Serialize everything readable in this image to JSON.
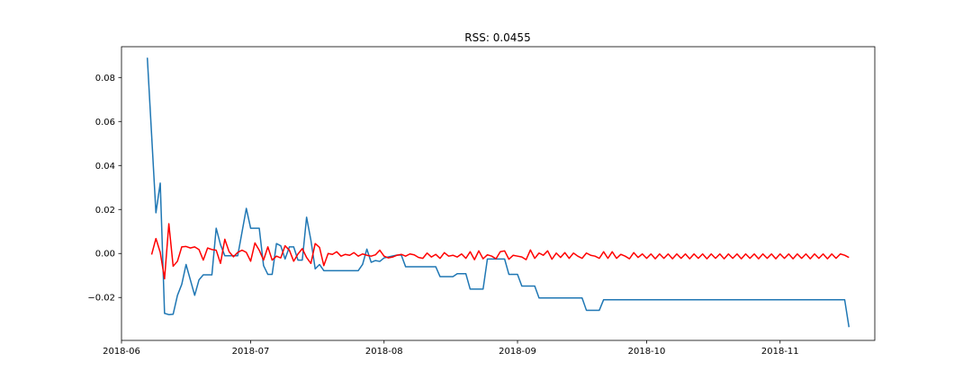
{
  "chart_data": {
    "type": "line",
    "title": "RSS: 0.0455",
    "xlabel": "",
    "ylabel": "",
    "x_type": "date",
    "xlim": [
      "2018-06-01",
      "2018-11-23"
    ],
    "ylim": [
      -0.0395,
      0.094
    ],
    "xticks": [
      "2018-06",
      "2018-07",
      "2018-08",
      "2018-09",
      "2018-10",
      "2018-11"
    ],
    "yticks": [
      "0.08",
      "0.06",
      "0.04",
      "0.02",
      "0.00",
      "−0.02"
    ],
    "ytick_values": [
      0.08,
      0.06,
      0.04,
      0.02,
      0.0,
      -0.02
    ],
    "grid": false,
    "series": [
      {
        "color": "#1f77b4",
        "points": [
          [
            "2018-06-07",
            0.089
          ],
          [
            "2018-06-09",
            0.0185
          ],
          [
            "2018-06-10",
            0.032
          ],
          [
            "2018-06-11",
            -0.0272
          ],
          [
            "2018-06-12",
            -0.0278
          ],
          [
            "2018-06-13",
            -0.0276
          ],
          [
            "2018-06-14",
            -0.019
          ],
          [
            "2018-06-15",
            -0.014
          ],
          [
            "2018-06-16",
            -0.005
          ],
          [
            "2018-06-17",
            -0.012
          ],
          [
            "2018-06-18",
            -0.019
          ],
          [
            "2018-06-19",
            -0.012
          ],
          [
            "2018-06-20",
            -0.0097
          ],
          [
            "2018-06-22",
            -0.0097
          ],
          [
            "2018-06-23",
            0.0115
          ],
          [
            "2018-06-24",
            0.004
          ],
          [
            "2018-06-25",
            -0.001
          ],
          [
            "2018-06-28",
            -0.001
          ],
          [
            "2018-06-30",
            0.0205
          ],
          [
            "2018-07-01",
            0.0115
          ],
          [
            "2018-07-03",
            0.0115
          ],
          [
            "2018-07-04",
            -0.0055
          ],
          [
            "2018-07-05",
            -0.0095
          ],
          [
            "2018-07-06",
            -0.0095
          ],
          [
            "2018-07-07",
            0.0045
          ],
          [
            "2018-07-08",
            0.0035
          ],
          [
            "2018-07-09",
            -0.0025
          ],
          [
            "2018-07-10",
            0.003
          ],
          [
            "2018-07-11",
            0.003
          ],
          [
            "2018-07-12",
            -0.003
          ],
          [
            "2018-07-13",
            -0.003
          ],
          [
            "2018-07-14",
            0.0165
          ],
          [
            "2018-07-15",
            0.006
          ],
          [
            "2018-07-16",
            -0.007
          ],
          [
            "2018-07-17",
            -0.005
          ],
          [
            "2018-07-18",
            -0.0078
          ],
          [
            "2018-07-26",
            -0.0078
          ],
          [
            "2018-07-27",
            -0.005
          ],
          [
            "2018-07-28",
            0.002
          ],
          [
            "2018-07-29",
            -0.004
          ],
          [
            "2018-07-30",
            -0.0032
          ],
          [
            "2018-07-31",
            -0.0036
          ],
          [
            "2018-08-01",
            -0.002
          ],
          [
            "2018-08-04",
            -0.0007
          ],
          [
            "2018-08-05",
            -0.0007
          ],
          [
            "2018-08-06",
            -0.006
          ],
          [
            "2018-08-13",
            -0.006
          ],
          [
            "2018-08-14",
            -0.0105
          ],
          [
            "2018-08-17",
            -0.0105
          ],
          [
            "2018-08-18",
            -0.0092
          ],
          [
            "2018-08-20",
            -0.0092
          ],
          [
            "2018-08-21",
            -0.0162
          ],
          [
            "2018-08-24",
            -0.0162
          ],
          [
            "2018-08-25",
            -0.0025
          ],
          [
            "2018-08-29",
            -0.0025
          ],
          [
            "2018-08-30",
            -0.0095
          ],
          [
            "2018-09-01",
            -0.0095
          ],
          [
            "2018-09-02",
            -0.0148
          ],
          [
            "2018-09-05",
            -0.0148
          ],
          [
            "2018-09-06",
            -0.0202
          ],
          [
            "2018-09-16",
            -0.0202
          ],
          [
            "2018-09-17",
            -0.0258
          ],
          [
            "2018-09-20",
            -0.0258
          ],
          [
            "2018-09-21",
            -0.021
          ],
          [
            "2018-11-16",
            -0.021
          ],
          [
            "2018-11-17",
            -0.0335
          ]
        ]
      },
      {
        "color": "#ff0000",
        "points": [
          [
            "2018-06-08",
            -0.0005
          ],
          [
            "2018-06-09",
            0.0068
          ],
          [
            "2018-06-10",
            0.0005
          ],
          [
            "2018-06-11",
            -0.0115
          ],
          [
            "2018-06-12",
            0.0135
          ],
          [
            "2018-06-13",
            -0.0058
          ],
          [
            "2018-06-14",
            -0.0035
          ],
          [
            "2018-06-15",
            0.003
          ],
          [
            "2018-06-16",
            0.0032
          ],
          [
            "2018-06-17",
            0.0025
          ],
          [
            "2018-06-18",
            0.003
          ],
          [
            "2018-06-19",
            0.0018
          ],
          [
            "2018-06-20",
            -0.003
          ],
          [
            "2018-06-21",
            0.0025
          ],
          [
            "2018-06-22",
            0.0018
          ],
          [
            "2018-06-23",
            0.0015
          ],
          [
            "2018-06-24",
            -0.0045
          ],
          [
            "2018-06-25",
            0.0065
          ],
          [
            "2018-06-26",
            0.0008
          ],
          [
            "2018-06-27",
            -0.0015
          ],
          [
            "2018-06-28",
            0.0005
          ],
          [
            "2018-06-29",
            0.0015
          ],
          [
            "2018-06-30",
            0.0005
          ],
          [
            "2018-07-01",
            -0.0035
          ],
          [
            "2018-07-02",
            0.0048
          ],
          [
            "2018-07-03",
            0.0015
          ],
          [
            "2018-07-04",
            -0.003
          ],
          [
            "2018-07-05",
            0.003
          ],
          [
            "2018-07-06",
            -0.003
          ],
          [
            "2018-07-07",
            -0.0012
          ],
          [
            "2018-07-08",
            -0.002
          ],
          [
            "2018-07-09",
            0.0035
          ],
          [
            "2018-07-10",
            0.0015
          ],
          [
            "2018-07-11",
            -0.0035
          ],
          [
            "2018-07-12",
            -0.0002
          ],
          [
            "2018-07-13",
            0.0022
          ],
          [
            "2018-07-14",
            -0.0018
          ],
          [
            "2018-07-15",
            -0.0045
          ],
          [
            "2018-07-16",
            0.0045
          ],
          [
            "2018-07-17",
            0.0028
          ],
          [
            "2018-07-18",
            -0.0055
          ],
          [
            "2018-07-19",
            0.0
          ],
          [
            "2018-07-20",
            -0.0004
          ],
          [
            "2018-07-21",
            0.0008
          ],
          [
            "2018-07-22",
            -0.0012
          ],
          [
            "2018-07-23",
            -0.0004
          ],
          [
            "2018-07-24",
            -0.0008
          ],
          [
            "2018-07-25",
            0.0004
          ],
          [
            "2018-07-26",
            -0.0012
          ],
          [
            "2018-07-27",
            -0.0002
          ],
          [
            "2018-07-28",
            -0.0008
          ],
          [
            "2018-07-29",
            -0.0012
          ],
          [
            "2018-07-30",
            -0.0006
          ],
          [
            "2018-07-31",
            0.0015
          ],
          [
            "2018-08-01",
            -0.0012
          ],
          [
            "2018-08-02",
            -0.002
          ],
          [
            "2018-08-03",
            -0.0016
          ],
          [
            "2018-08-04",
            -0.0008
          ],
          [
            "2018-08-05",
            -0.0004
          ],
          [
            "2018-08-06",
            -0.0012
          ],
          [
            "2018-08-07",
            -0.0002
          ],
          [
            "2018-08-08",
            -0.0006
          ],
          [
            "2018-08-09",
            -0.0018
          ],
          [
            "2018-08-10",
            -0.0022
          ],
          [
            "2018-08-11",
            0.0002
          ],
          [
            "2018-08-12",
            -0.0016
          ],
          [
            "2018-08-13",
            -0.0004
          ],
          [
            "2018-08-14",
            -0.0022
          ],
          [
            "2018-08-15",
            0.0004
          ],
          [
            "2018-08-16",
            -0.0012
          ],
          [
            "2018-08-17",
            -0.0008
          ],
          [
            "2018-08-18",
            -0.0016
          ],
          [
            "2018-08-19",
            -0.0002
          ],
          [
            "2018-08-20",
            -0.0022
          ],
          [
            "2018-08-21",
            0.0008
          ],
          [
            "2018-08-22",
            -0.0028
          ],
          [
            "2018-08-23",
            0.0012
          ],
          [
            "2018-08-24",
            -0.0024
          ],
          [
            "2018-08-25",
            -0.0006
          ],
          [
            "2018-08-26",
            -0.0012
          ],
          [
            "2018-08-27",
            -0.0024
          ],
          [
            "2018-08-28",
            0.0008
          ],
          [
            "2018-08-29",
            0.0012
          ],
          [
            "2018-08-30",
            -0.0026
          ],
          [
            "2018-08-31",
            -0.0008
          ],
          [
            "2018-09-01",
            -0.0012
          ],
          [
            "2018-09-02",
            -0.0016
          ],
          [
            "2018-09-03",
            -0.0028
          ],
          [
            "2018-09-04",
            0.0016
          ],
          [
            "2018-09-05",
            -0.0022
          ],
          [
            "2018-09-06",
            0.0002
          ],
          [
            "2018-09-07",
            -0.0008
          ],
          [
            "2018-09-08",
            0.0012
          ],
          [
            "2018-09-09",
            -0.0026
          ],
          [
            "2018-09-10",
            0.0002
          ],
          [
            "2018-09-11",
            -0.0018
          ],
          [
            "2018-09-12",
            0.0004
          ],
          [
            "2018-09-13",
            -0.0022
          ],
          [
            "2018-09-14",
            0.0002
          ],
          [
            "2018-09-15",
            -0.0012
          ],
          [
            "2018-09-16",
            -0.0022
          ],
          [
            "2018-09-17",
            0.0002
          ],
          [
            "2018-09-18",
            -0.0008
          ],
          [
            "2018-09-19",
            -0.0012
          ],
          [
            "2018-09-20",
            -0.0022
          ],
          [
            "2018-09-21",
            0.0008
          ],
          [
            "2018-09-22",
            -0.0022
          ],
          [
            "2018-09-23",
            0.0008
          ],
          [
            "2018-09-24",
            -0.0022
          ],
          [
            "2018-09-25",
            -0.0004
          ],
          [
            "2018-09-26",
            -0.0012
          ],
          [
            "2018-09-27",
            -0.0024
          ],
          [
            "2018-09-28",
            0.0004
          ],
          [
            "2018-09-29",
            -0.0018
          ],
          [
            "2018-09-30",
            -0.0002
          ],
          [
            "2018-10-01",
            -0.0022
          ],
          [
            "2018-10-02",
            -0.0002
          ],
          [
            "2018-10-03",
            -0.0024
          ],
          [
            "2018-10-04",
            -0.0002
          ],
          [
            "2018-10-05",
            -0.0022
          ],
          [
            "2018-10-06",
            -0.0002
          ],
          [
            "2018-10-07",
            -0.0024
          ],
          [
            "2018-10-08",
            -0.0002
          ],
          [
            "2018-10-09",
            -0.0022
          ],
          [
            "2018-10-10",
            -0.0002
          ],
          [
            "2018-10-11",
            -0.0024
          ],
          [
            "2018-10-12",
            -0.0002
          ],
          [
            "2018-10-13",
            -0.0022
          ],
          [
            "2018-10-14",
            -0.0002
          ],
          [
            "2018-10-15",
            -0.0024
          ],
          [
            "2018-10-16",
            -0.0002
          ],
          [
            "2018-10-17",
            -0.0022
          ],
          [
            "2018-10-18",
            -0.0002
          ],
          [
            "2018-10-19",
            -0.0024
          ],
          [
            "2018-10-20",
            -0.0002
          ],
          [
            "2018-10-21",
            -0.0022
          ],
          [
            "2018-10-22",
            -0.0002
          ],
          [
            "2018-10-23",
            -0.0024
          ],
          [
            "2018-10-24",
            -0.0002
          ],
          [
            "2018-10-25",
            -0.0022
          ],
          [
            "2018-10-26",
            -0.0002
          ],
          [
            "2018-10-27",
            -0.0024
          ],
          [
            "2018-10-28",
            -0.0002
          ],
          [
            "2018-10-29",
            -0.0022
          ],
          [
            "2018-10-30",
            -0.0002
          ],
          [
            "2018-10-31",
            -0.0024
          ],
          [
            "2018-11-01",
            -0.0002
          ],
          [
            "2018-11-02",
            -0.0022
          ],
          [
            "2018-11-03",
            -0.0002
          ],
          [
            "2018-11-04",
            -0.0024
          ],
          [
            "2018-11-05",
            -0.0002
          ],
          [
            "2018-11-06",
            -0.0022
          ],
          [
            "2018-11-07",
            -0.0002
          ],
          [
            "2018-11-08",
            -0.0024
          ],
          [
            "2018-11-09",
            -0.0002
          ],
          [
            "2018-11-10",
            -0.0022
          ],
          [
            "2018-11-11",
            -0.0002
          ],
          [
            "2018-11-12",
            -0.0024
          ],
          [
            "2018-11-13",
            -0.0002
          ],
          [
            "2018-11-14",
            -0.0022
          ],
          [
            "2018-11-15",
            -0.0002
          ],
          [
            "2018-11-16",
            -0.0008
          ],
          [
            "2018-11-17",
            -0.0018
          ]
        ]
      }
    ]
  }
}
